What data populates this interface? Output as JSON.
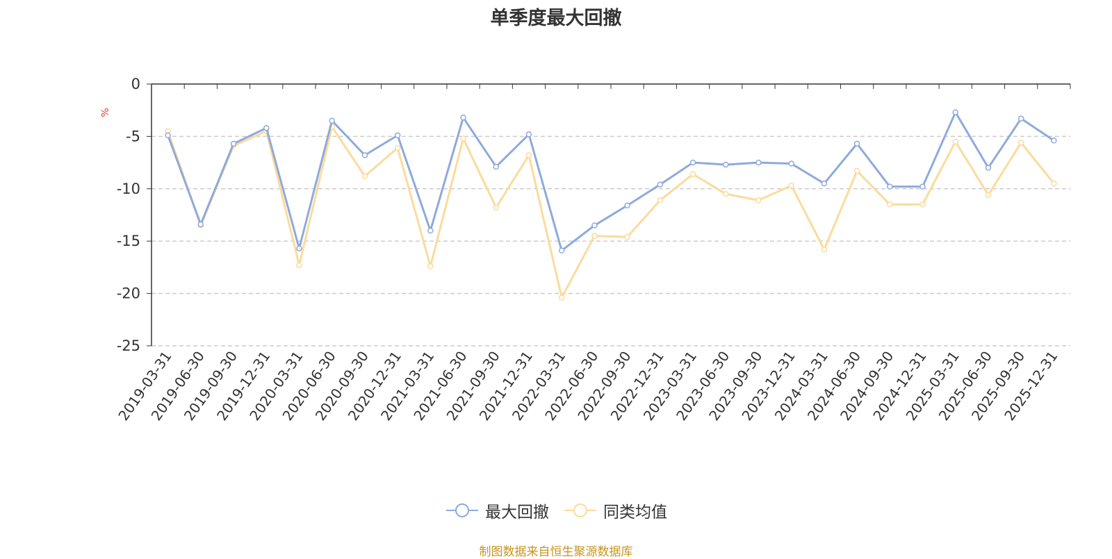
{
  "chart_data": {
    "type": "line",
    "title": "单季度最大回撤",
    "ylabel": "%",
    "ylim": [
      -25,
      0
    ],
    "yticks": [
      0,
      -5,
      -10,
      -15,
      -20,
      -25
    ],
    "grid": true,
    "legend_position": "bottom-center",
    "categories": [
      "2019-03-31",
      "2019-06-30",
      "2019-09-30",
      "2019-12-31",
      "2020-03-31",
      "2020-06-30",
      "2020-09-30",
      "2020-12-31",
      "2021-03-31",
      "2021-06-30",
      "2021-09-30",
      "2021-12-31",
      "2022-03-31",
      "2022-06-30",
      "2022-09-30",
      "2022-12-31",
      "2023-03-31",
      "2023-06-30",
      "2023-09-30",
      "2023-12-31",
      "2024-03-31",
      "2024-06-30",
      "2024-09-30",
      "2024-12-31",
      "2025-03-31",
      "2025-06-30",
      "2025-09-30",
      "2025-12-31"
    ],
    "series": [
      {
        "name": "最大回撤",
        "color": "#8eaadb",
        "values": [
          -4.9,
          -13.4,
          -5.7,
          -4.2,
          -15.7,
          -3.5,
          -6.8,
          -4.9,
          -14.0,
          -3.2,
          -7.9,
          -4.8,
          -15.9,
          -13.5,
          -11.6,
          -9.6,
          -7.5,
          -7.7,
          -7.5,
          -7.6,
          -9.5,
          -5.7,
          -9.8,
          -9.8,
          -2.7,
          -8.0,
          -3.3,
          -5.4
        ]
      },
      {
        "name": "同类均值",
        "color": "#fbdb9c",
        "values": [
          -4.5,
          -13.5,
          -5.9,
          -4.5,
          -17.3,
          -4.1,
          -8.8,
          -6.1,
          -17.4,
          -5.2,
          -11.8,
          -6.8,
          -20.4,
          -14.5,
          -14.6,
          -11.1,
          -8.6,
          -10.5,
          -11.1,
          -9.7,
          -15.8,
          -8.3,
          -11.5,
          -11.5,
          -5.5,
          -10.6,
          -5.6,
          -9.5
        ]
      }
    ]
  },
  "source_note": "制图数据来自恒生聚源数据库"
}
